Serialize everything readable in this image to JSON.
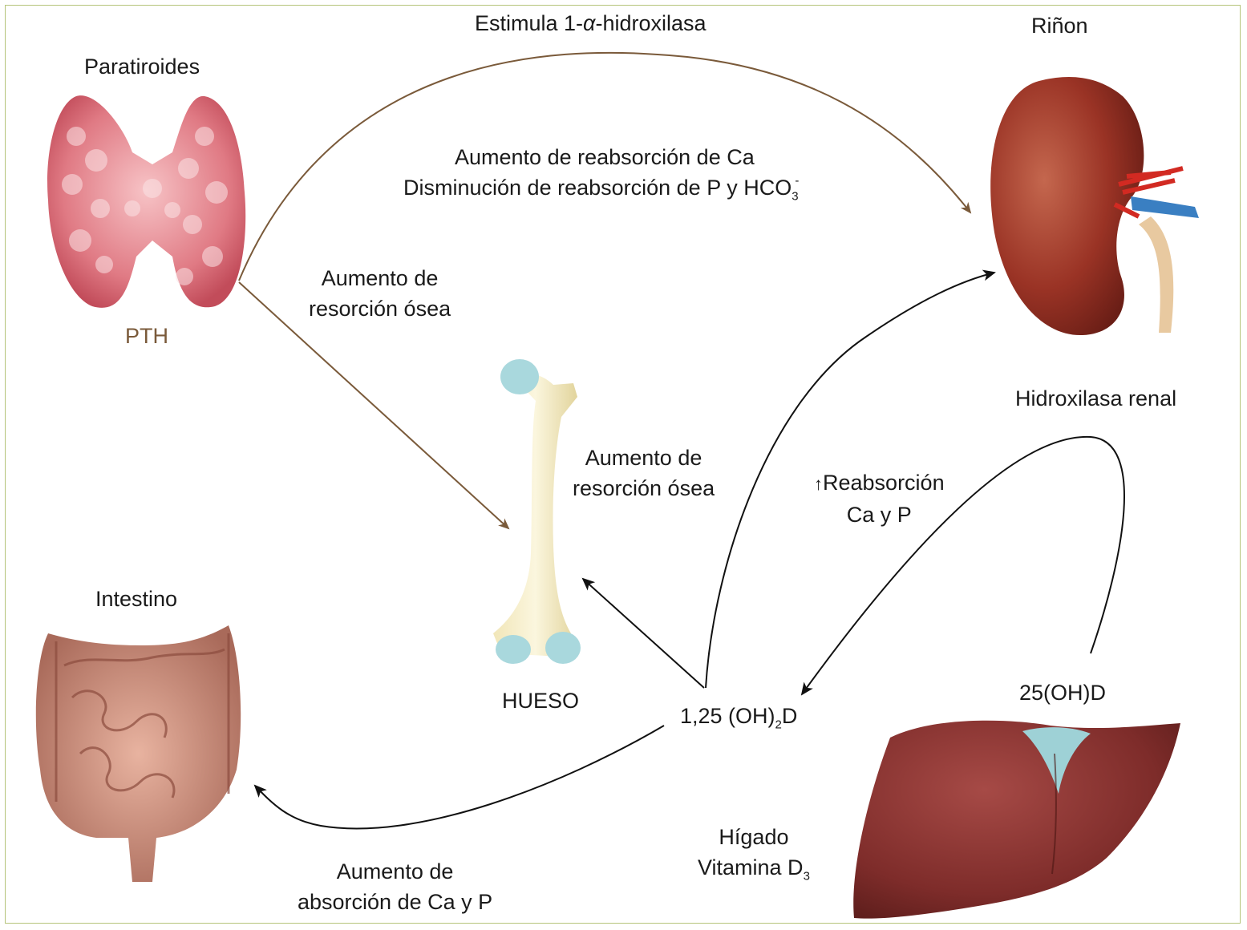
{
  "labels": {
    "estimula": {
      "pre": "Estimula 1-",
      "alpha": "α",
      "post": "-hidroxilasa"
    },
    "rinon": "Riñon",
    "paratiroides": "Paratiroides",
    "pth": "PTH",
    "aumento_reabsorcion_ca": "Aumento de reabsorción de Ca",
    "disminucion": {
      "text": "Disminución de reabsorción de P y HCO",
      "sub": "3",
      "sup": "-"
    },
    "aumento_resorcion_1": {
      "line1": "Aumento de",
      "line2": "resorción ósea"
    },
    "aumento_resorcion_2": {
      "line1": "Aumento de",
      "line2": "resorción ósea"
    },
    "hueso": "HUESO",
    "intestino": "Intestino",
    "hidroxilasa_renal": "Hidroxilasa renal",
    "reabsorcion": {
      "arrow": "↑",
      "line1": "Reabsorción",
      "line2": "Ca y P"
    },
    "vitd_active": {
      "pre": "1,25 (OH)",
      "sub": "2",
      "post": "D"
    },
    "d25": "25(OH)D",
    "higado": {
      "line1": "Hígado",
      "line2_pre": "Vitamina D",
      "line2_sub": "3"
    },
    "absorcion": {
      "line1": "Aumento de",
      "line2": "absorción de Ca y P"
    }
  },
  "colors": {
    "pth_arrow": "#7a5a3a",
    "black_arrow": "#111111",
    "border": "#b5c47a"
  },
  "icons": [
    "parathyroid-icon",
    "kidney-icon",
    "bone-icon",
    "intestine-icon",
    "liver-icon"
  ]
}
